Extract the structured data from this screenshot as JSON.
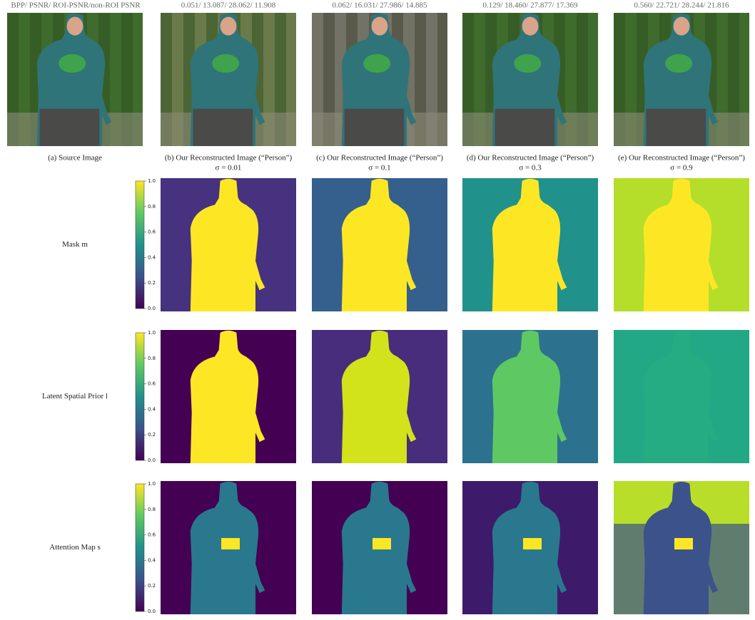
{
  "header": {
    "metrics_label": "BPP/ PSNR/ ROI-PSNR/non-ROI PSNR"
  },
  "columns": [
    {
      "caption": "(a) Source Image"
    },
    {
      "metrics": "0.051/ 13.087/ 28.062/ 11.908",
      "caption": "(b) Our Reconstructed Image (“Person”)",
      "sigma": "σ = 0.01"
    },
    {
      "metrics": "0.062/ 16.031/ 27.986/ 14.885",
      "caption": "(c) Our Reconstructed Image (“Person”)",
      "sigma": "σ = 0.1"
    },
    {
      "metrics": "0.129/ 18.460/ 27.877/ 17.369",
      "caption": "(d) Our Reconstructed Image (“Person”)",
      "sigma": "σ = 0.3"
    },
    {
      "metrics": "0.560/ 22.721/ 28.244/ 21.816",
      "caption": "(e) Our Reconstructed Image (“Person”)",
      "sigma": "σ = 0.9"
    }
  ],
  "rows": [
    {
      "label": "Mask m"
    },
    {
      "label": "Latent Spatial Prior l"
    },
    {
      "label": "Attention Map s"
    }
  ],
  "colorbar_ticks": [
    "0.0",
    "0.2",
    "0.4",
    "0.6",
    "0.8",
    "1.0"
  ]
}
